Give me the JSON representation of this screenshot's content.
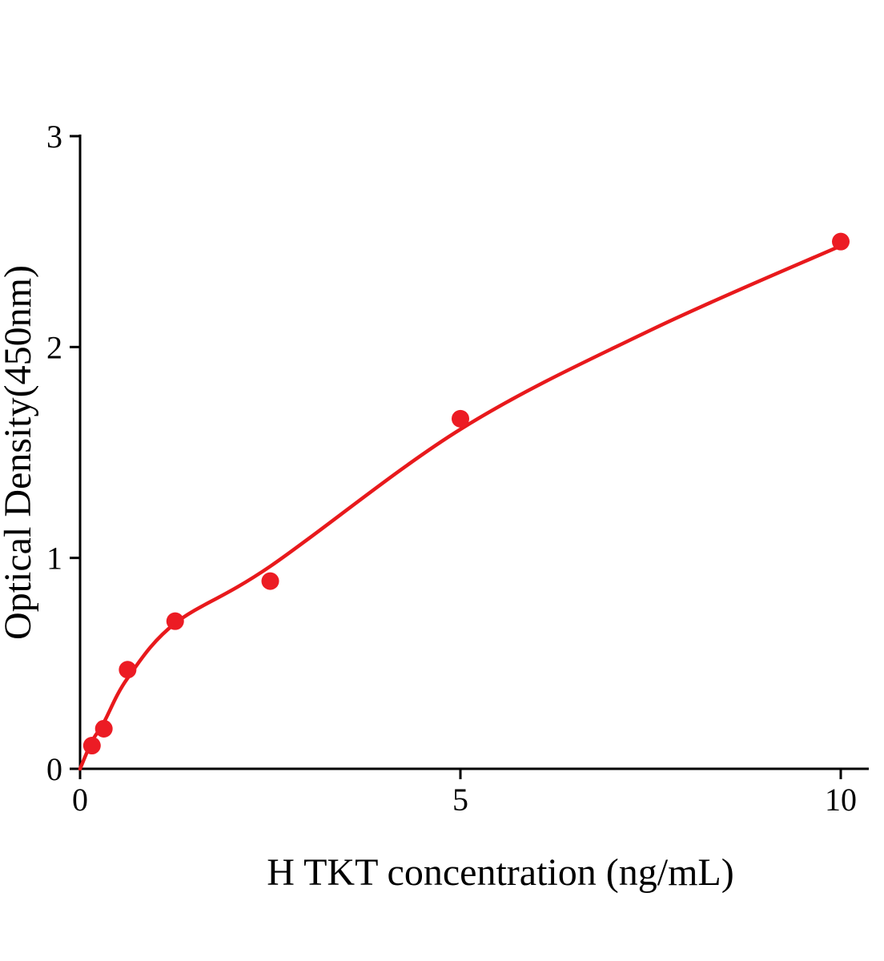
{
  "chart_data": {
    "type": "scatter",
    "title": "",
    "xlabel": "H TKT concentration (ng/mL)",
    "ylabel": "Optical Density(450nm)",
    "xlim": [
      0,
      10.4
    ],
    "ylim": [
      0,
      3
    ],
    "x_ticks": [
      0,
      5,
      10
    ],
    "y_ticks": [
      0,
      1,
      2,
      3
    ],
    "grid": false,
    "legend": "none",
    "points": [
      {
        "x": 0.156,
        "y": 0.11
      },
      {
        "x": 0.3125,
        "y": 0.19
      },
      {
        "x": 0.625,
        "y": 0.47
      },
      {
        "x": 1.25,
        "y": 0.7
      },
      {
        "x": 2.5,
        "y": 0.89
      },
      {
        "x": 5,
        "y": 1.66
      },
      {
        "x": 10,
        "y": 2.5
      }
    ],
    "fit_curve": [
      [
        0,
        0.0
      ],
      [
        0.156,
        0.13
      ],
      [
        0.3125,
        0.22
      ],
      [
        0.625,
        0.43
      ],
      [
        1.25,
        0.69
      ],
      [
        2.5,
        0.96
      ],
      [
        5,
        1.61
      ],
      [
        7.5,
        2.08
      ],
      [
        10,
        2.48
      ]
    ],
    "colors": {
      "point": "#ec1c24",
      "line": "#e8191c",
      "axis": "#000000"
    }
  }
}
